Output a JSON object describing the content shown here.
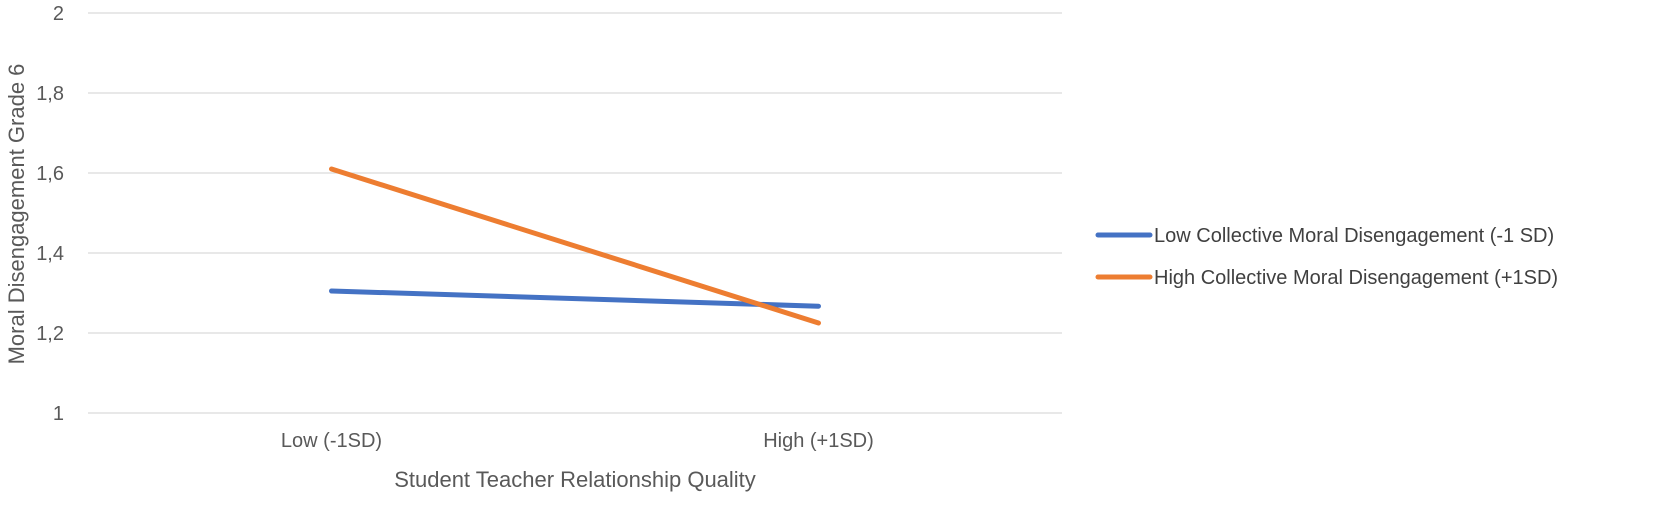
{
  "chart_data": {
    "type": "line",
    "categories": [
      "Low  (-1SD)",
      "High (+1SD)"
    ],
    "series": [
      {
        "name": "Low Collective Moral Disengagement (-1 SD)",
        "values": [
          1.305,
          1.267
        ],
        "color": "#4472C4"
      },
      {
        "name": "High Collective Moral Disengagement (+1SD)",
        "values": [
          1.61,
          1.225
        ],
        "color": "#ED7D31"
      }
    ],
    "title": "",
    "xlabel": "Student Teacher Relationship Quality",
    "ylabel": "Moral Disengagement Grade 6",
    "ylim": [
      1,
      2
    ],
    "yticks": [
      "1",
      "1,2",
      "1,4",
      "1,6",
      "1,8",
      "2"
    ],
    "grid": true,
    "legend_position": "right"
  }
}
